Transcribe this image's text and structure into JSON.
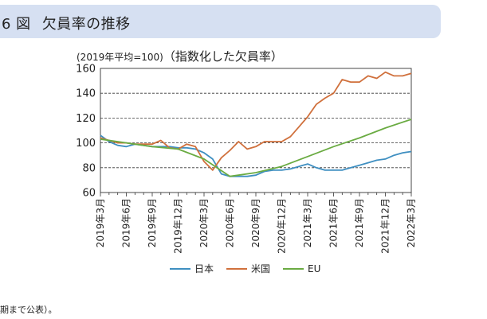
{
  "header": {
    "figure_number": "6 図",
    "title": "欠員率の推移"
  },
  "footnote": "期まで公表）。",
  "chart_data": {
    "type": "line",
    "unit_note": "(2019年平均=100)",
    "subtitle": "（指数化した欠員率）",
    "ylim": [
      60,
      160
    ],
    "yticks": [
      60,
      80,
      100,
      120,
      140,
      160
    ],
    "grid": "horizontal dashed",
    "legend_position": "bottom",
    "x_tick_labels": [
      "2019年3月",
      "2019年6月",
      "2019年9月",
      "2019年12月",
      "2020年3月",
      "2020年6月",
      "2020年9月",
      "2020年12月",
      "2021年3月",
      "2021年6月",
      "2021年9月",
      "2021年12月",
      "2022年3月"
    ],
    "x_months": [
      "2019-03",
      "2019-04",
      "2019-05",
      "2019-06",
      "2019-07",
      "2019-08",
      "2019-09",
      "2019-10",
      "2019-11",
      "2019-12",
      "2020-01",
      "2020-02",
      "2020-03",
      "2020-04",
      "2020-05",
      "2020-06",
      "2020-07",
      "2020-08",
      "2020-09",
      "2020-10",
      "2020-11",
      "2020-12",
      "2021-01",
      "2021-02",
      "2021-03",
      "2021-04",
      "2021-05",
      "2021-06",
      "2021-07",
      "2021-08",
      "2021-09",
      "2021-10",
      "2021-11",
      "2021-12",
      "2022-01",
      "2022-02",
      "2022-03"
    ],
    "series": [
      {
        "name": "日本",
        "color": "#3f8fc1",
        "values": [
          106,
          101,
          98,
          97,
          99,
          98,
          97,
          97,
          97,
          96,
          96,
          95,
          92,
          87,
          75,
          73,
          73,
          73,
          74,
          77,
          78,
          78,
          79,
          81,
          83,
          80,
          78,
          78,
          78,
          80,
          82,
          84,
          86,
          87,
          90,
          92,
          93
        ]
      },
      {
        "name": "米国",
        "color": "#d0703c",
        "values": [
          104,
          102,
          100,
          100,
          99,
          99,
          99,
          102,
          96,
          95,
          99,
          97,
          85,
          78,
          88,
          94,
          101,
          95,
          97,
          101,
          101,
          101,
          105,
          113,
          121,
          131,
          136,
          140,
          151,
          149,
          149,
          154,
          152,
          157,
          154,
          154,
          156
        ]
      },
      {
        "name": "EU",
        "color": "#6aab42",
        "values": [
          103,
          null,
          null,
          100,
          null,
          null,
          97,
          null,
          null,
          95,
          null,
          null,
          87,
          null,
          null,
          73,
          null,
          null,
          76,
          null,
          null,
          81,
          null,
          null,
          89,
          null,
          null,
          97,
          null,
          null,
          104,
          null,
          null,
          112,
          null,
          null,
          119
        ]
      }
    ]
  }
}
